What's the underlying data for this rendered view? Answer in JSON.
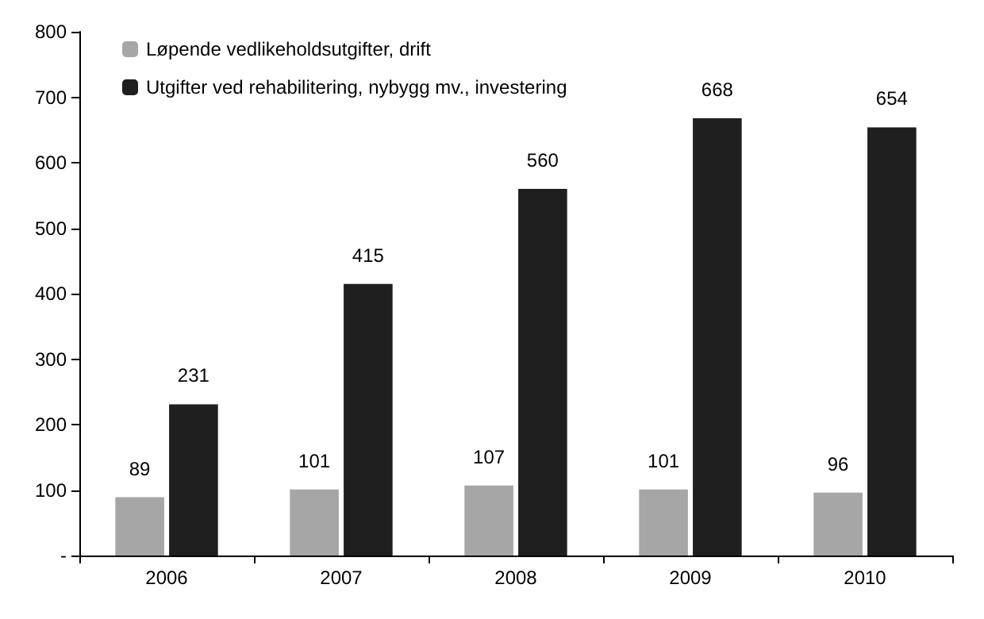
{
  "chart_data": {
    "type": "bar",
    "categories": [
      "2006",
      "2007",
      "2008",
      "2009",
      "2010"
    ],
    "series": [
      {
        "name": "Løpende vedlikeholdsutgifter, drift",
        "color": "#a6a6a6",
        "values": [
          89,
          101,
          107,
          101,
          96
        ]
      },
      {
        "name": "Utgifter ved rehabilitering, nybygg mv., investering",
        "color": "#1f1f1f",
        "values": [
          231,
          415,
          560,
          668,
          654
        ]
      }
    ],
    "ylim": [
      0,
      800
    ],
    "yticks": [
      {
        "value": 0,
        "label": "-"
      },
      100,
      200,
      300,
      400,
      500,
      600,
      700,
      800
    ],
    "grid": false,
    "legend": "top left",
    "data_labels": true
  }
}
